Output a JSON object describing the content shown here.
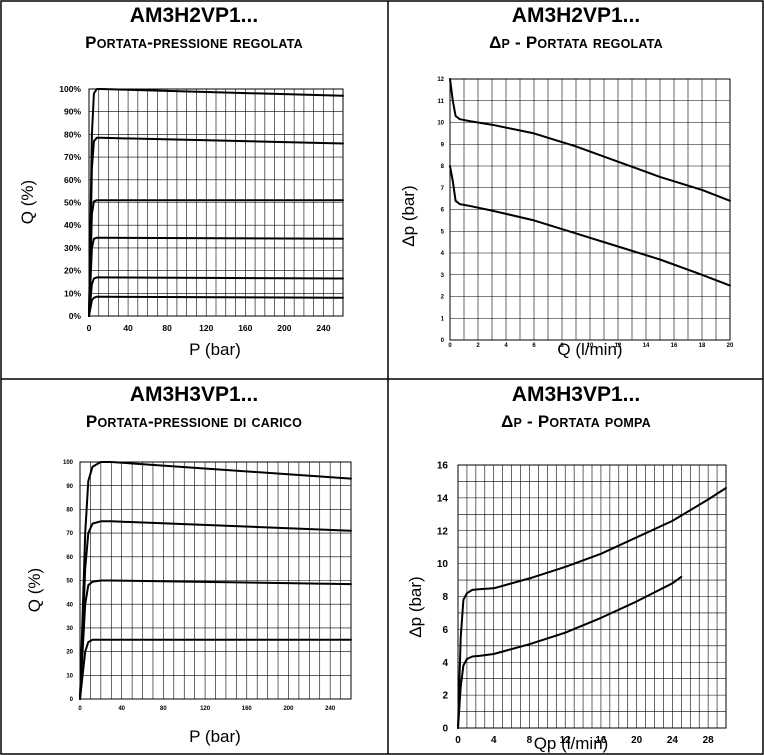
{
  "chart_data": [
    {
      "type": "line",
      "title": "AM3H2VP1...",
      "subtitle": "Portata-pressione regolata",
      "xlabel": "P (bar)",
      "ylabel": "Q (%)",
      "xlim": [
        0,
        260
      ],
      "ylim": [
        0,
        100
      ],
      "xticks": [
        "0",
        "40",
        "80",
        "120",
        "160",
        "200",
        "240"
      ],
      "yticks": [
        "0%",
        "10%",
        "20%",
        "30%",
        "40%",
        "50%",
        "60%",
        "70%",
        "80%",
        "90%",
        "100%"
      ],
      "grid": true,
      "series": [
        {
          "x": [
            0,
            3,
            5,
            8,
            12,
            260
          ],
          "y": [
            0,
            80,
            98,
            100,
            100,
            97
          ]
        },
        {
          "x": [
            0,
            3,
            5,
            8,
            12,
            260
          ],
          "y": [
            0,
            65,
            77,
            78.5,
            78.5,
            76
          ]
        },
        {
          "x": [
            0,
            3,
            5,
            8,
            12,
            260
          ],
          "y": [
            0,
            45,
            50.5,
            51,
            51,
            51
          ]
        },
        {
          "x": [
            0,
            3,
            5,
            8,
            12,
            260
          ],
          "y": [
            0,
            30,
            34,
            34.5,
            34.5,
            34
          ]
        },
        {
          "x": [
            0,
            3,
            5,
            8,
            12,
            260
          ],
          "y": [
            0,
            14,
            16.5,
            17,
            17,
            16.5
          ]
        },
        {
          "x": [
            0,
            3,
            5,
            8,
            12,
            260
          ],
          "y": [
            0,
            7,
            8,
            8.5,
            8.5,
            8
          ]
        }
      ]
    },
    {
      "type": "line",
      "title": "AM3H2VP1...",
      "subtitle": "Δp - Portata regolata",
      "xlabel": "Q (l/min)",
      "ylabel": "Δp (bar)",
      "xlim": [
        0,
        20
      ],
      "ylim": [
        0,
        12
      ],
      "xticks": [
        "0",
        "2",
        "4",
        "6",
        "8",
        "10",
        "12",
        "14",
        "16",
        "18",
        "20"
      ],
      "yticks": [
        "0",
        "1",
        "2",
        "3",
        "4",
        "5",
        "6",
        "7",
        "8",
        "9",
        "10",
        "11",
        "12"
      ],
      "grid": true,
      "series": [
        {
          "x": [
            0,
            0.2,
            0.4,
            0.7,
            1.5,
            3,
            6,
            9,
            12,
            15,
            18,
            20
          ],
          "y": [
            12,
            11,
            10.3,
            10.15,
            10.05,
            9.9,
            9.5,
            8.9,
            8.2,
            7.5,
            6.9,
            6.4
          ]
        },
        {
          "x": [
            0,
            0.2,
            0.4,
            0.7,
            1.5,
            3,
            6,
            9,
            12,
            15,
            18,
            20
          ],
          "y": [
            8,
            7.3,
            6.4,
            6.25,
            6.15,
            5.95,
            5.5,
            4.9,
            4.3,
            3.7,
            3.0,
            2.5
          ]
        }
      ]
    },
    {
      "type": "line",
      "title": "AM3H3VP1...",
      "subtitle": "Portata-pressione di carico",
      "xlabel": "P (bar)",
      "ylabel": "Q (%)",
      "xlim": [
        0,
        260
      ],
      "ylim": [
        0,
        100
      ],
      "xticks": [
        "0",
        "40",
        "80",
        "120",
        "160",
        "200",
        "240"
      ],
      "yticks": [
        "0",
        "10",
        "20",
        "30",
        "40",
        "50",
        "60",
        "70",
        "80",
        "90",
        "100"
      ],
      "grid": true,
      "series": [
        {
          "x": [
            0,
            5,
            8,
            12,
            20,
            30,
            260
          ],
          "y": [
            0,
            70,
            92,
            98,
            100,
            100,
            93
          ]
        },
        {
          "x": [
            0,
            5,
            8,
            12,
            20,
            30,
            260
          ],
          "y": [
            0,
            55,
            70,
            74,
            75,
            75,
            71
          ]
        },
        {
          "x": [
            0,
            5,
            8,
            12,
            20,
            30,
            260
          ],
          "y": [
            0,
            40,
            48,
            49.5,
            50,
            50,
            48.5
          ]
        },
        {
          "x": [
            0,
            5,
            8,
            12,
            20,
            30,
            260
          ],
          "y": [
            0,
            20,
            24,
            25,
            25,
            25,
            25
          ]
        }
      ]
    },
    {
      "type": "line",
      "title": "AM3H3VP1...",
      "subtitle": "Δp - Portata pompa",
      "xlabel": "Qp (l/min)",
      "ylabel": "Δp (bar)",
      "xlim": [
        0,
        30
      ],
      "ylim": [
        0,
        16
      ],
      "xticks": [
        "0",
        "4",
        "8",
        "12",
        "16",
        "20",
        "24",
        "28"
      ],
      "yticks": [
        "0",
        "2",
        "4",
        "6",
        "8",
        "10",
        "12",
        "14",
        "16"
      ],
      "grid": true,
      "series": [
        {
          "x": [
            0,
            0.3,
            0.6,
            1,
            1.6,
            2.5,
            4,
            8,
            12,
            16,
            20,
            24,
            28,
            30
          ],
          "y": [
            0,
            5.5,
            7.8,
            8.2,
            8.4,
            8.45,
            8.5,
            9.1,
            9.8,
            10.6,
            11.6,
            12.6,
            13.9,
            14.6
          ]
        },
        {
          "x": [
            0,
            0.3,
            0.6,
            1,
            1.6,
            2.5,
            4,
            8,
            12,
            16,
            20,
            24,
            25
          ],
          "y": [
            0,
            2.5,
            3.8,
            4.2,
            4.35,
            4.4,
            4.5,
            5.1,
            5.8,
            6.7,
            7.7,
            8.8,
            9.2
          ]
        }
      ]
    }
  ]
}
